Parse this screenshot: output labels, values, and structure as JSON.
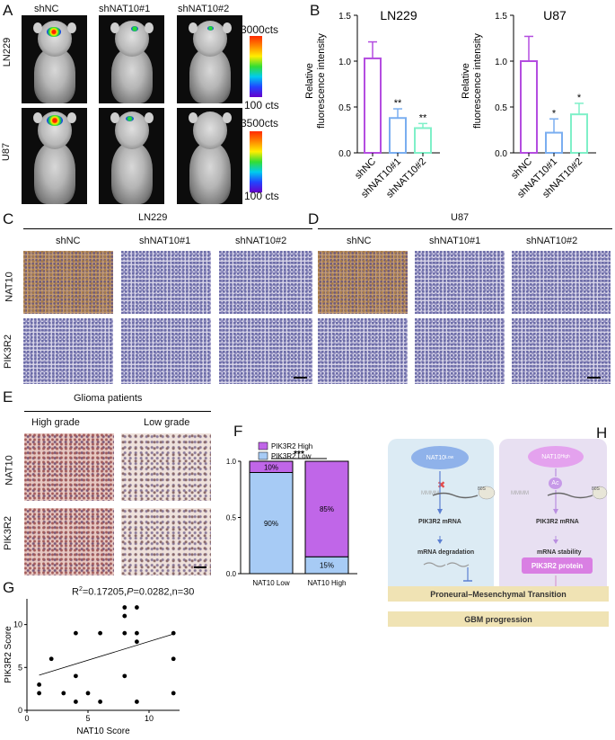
{
  "panelA": {
    "letter": "A",
    "groups": [
      "shNC",
      "shNAT10#1",
      "shNAT10#2"
    ],
    "rows": [
      "LN229",
      "U87"
    ],
    "scale_ln229": {
      "max": "3000cts",
      "min": "100 cts"
    },
    "scale_u87": {
      "max": "3500cts",
      "min": "100 cts"
    }
  },
  "panelB": {
    "letter": "B",
    "ylabel_line1": "Relative",
    "ylabel_line2": "fluorescence intensity",
    "chart_data": [
      {
        "type": "bar",
        "title": "LN229",
        "categories": [
          "shNC",
          "shNAT10#1",
          "shNAT10#2"
        ],
        "values": [
          1.03,
          0.38,
          0.27
        ],
        "errors": [
          0.18,
          0.1,
          0.05
        ],
        "significance": [
          "",
          "**",
          "**"
        ],
        "ylim": [
          0,
          1.5
        ],
        "yticks": [
          "0.0",
          "0.5",
          "1.0",
          "1.5"
        ],
        "colors": [
          "#b44de0",
          "#7aaef0",
          "#7ff0c8"
        ]
      },
      {
        "type": "bar",
        "title": "U87",
        "categories": [
          "shNC",
          "shNAT10#1",
          "shNAT10#2"
        ],
        "values": [
          1.0,
          0.22,
          0.42
        ],
        "errors": [
          0.27,
          0.15,
          0.12
        ],
        "significance": [
          "",
          "*",
          "*"
        ],
        "ylim": [
          0,
          1.5
        ],
        "yticks": [
          "0.0",
          "0.5",
          "1.0",
          "1.5"
        ],
        "colors": [
          "#b44de0",
          "#7aaef0",
          "#7ff0c8"
        ]
      }
    ]
  },
  "panelC": {
    "letter": "C",
    "title": "LN229",
    "cols": [
      "shNC",
      "shNAT10#1",
      "shNAT10#2"
    ],
    "rows": [
      "NAT10",
      "PIK3R2"
    ]
  },
  "panelD": {
    "letter": "D",
    "title": "U87",
    "cols": [
      "shNC",
      "shNAT10#1",
      "shNAT10#2"
    ]
  },
  "panelE": {
    "letter": "E",
    "title": "Glioma patients",
    "cols": [
      "High grade",
      "Low grade"
    ],
    "rows": [
      "NAT10",
      "PIK3R2"
    ]
  },
  "panelF": {
    "letter": "F",
    "chart_data": {
      "type": "bar",
      "stacked": true,
      "categories": [
        "NAT10 Low",
        "NAT10 High"
      ],
      "series": [
        {
          "name": "PIK3R2 Low",
          "values": [
            0.9,
            0.15
          ],
          "labels": [
            "90%",
            "15%"
          ],
          "color": "#a7cbf5"
        },
        {
          "name": "PIK3R2 High",
          "values": [
            0.1,
            0.85
          ],
          "labels": [
            "10%",
            "85%"
          ],
          "color": "#c066e8"
        }
      ],
      "ylim": [
        0,
        1.0
      ],
      "yticks": [
        "0.0",
        "0.5",
        "1.0"
      ],
      "significance": "***",
      "legend": "top"
    }
  },
  "panelG": {
    "letter": "G",
    "chart_data": {
      "type": "scatter",
      "annotation": "R²=0.17205,P=0.0282,n=30",
      "annotation_parts": {
        "r2": "R",
        "sup": "2",
        "rest1": "=0.17205,",
        "p": "P",
        "rest2": "=0.0282,n=30"
      },
      "xlabel": "NAT10 Score",
      "ylabel": "PIK3R2 Score",
      "xlim": [
        0,
        12.5
      ],
      "ylim": [
        0,
        13
      ],
      "xticks": [
        0,
        5,
        10
      ],
      "yticks": [
        0,
        5,
        10
      ],
      "x": [
        1,
        1,
        2,
        3,
        4,
        4,
        4,
        5,
        6,
        6,
        8,
        8,
        8,
        8,
        9,
        9,
        9,
        9,
        12,
        12,
        12
      ],
      "y": [
        2,
        3,
        6,
        2,
        1,
        4,
        9,
        2,
        1,
        9,
        4,
        9,
        12,
        11,
        1,
        8,
        9,
        12,
        9,
        6,
        2
      ],
      "fit": {
        "x0": 1,
        "y0": 4.1,
        "x1": 12,
        "y1": 8.9
      }
    }
  },
  "panelH": {
    "letter": "H",
    "left_node": "NAT10",
    "left_sup": "Low",
    "right_node": "NAT10",
    "right_sup": "High",
    "ac": "Ac",
    "mrna": "PIK3R2 mRNA",
    "left_outcome": "mRNA degradation",
    "right_outcome": "mRNA stability",
    "protein": "PIK3R2 protein",
    "ribosome": "80S",
    "band1": "Proneural–Mesenchymal Transition",
    "band2": "GBM progression"
  }
}
